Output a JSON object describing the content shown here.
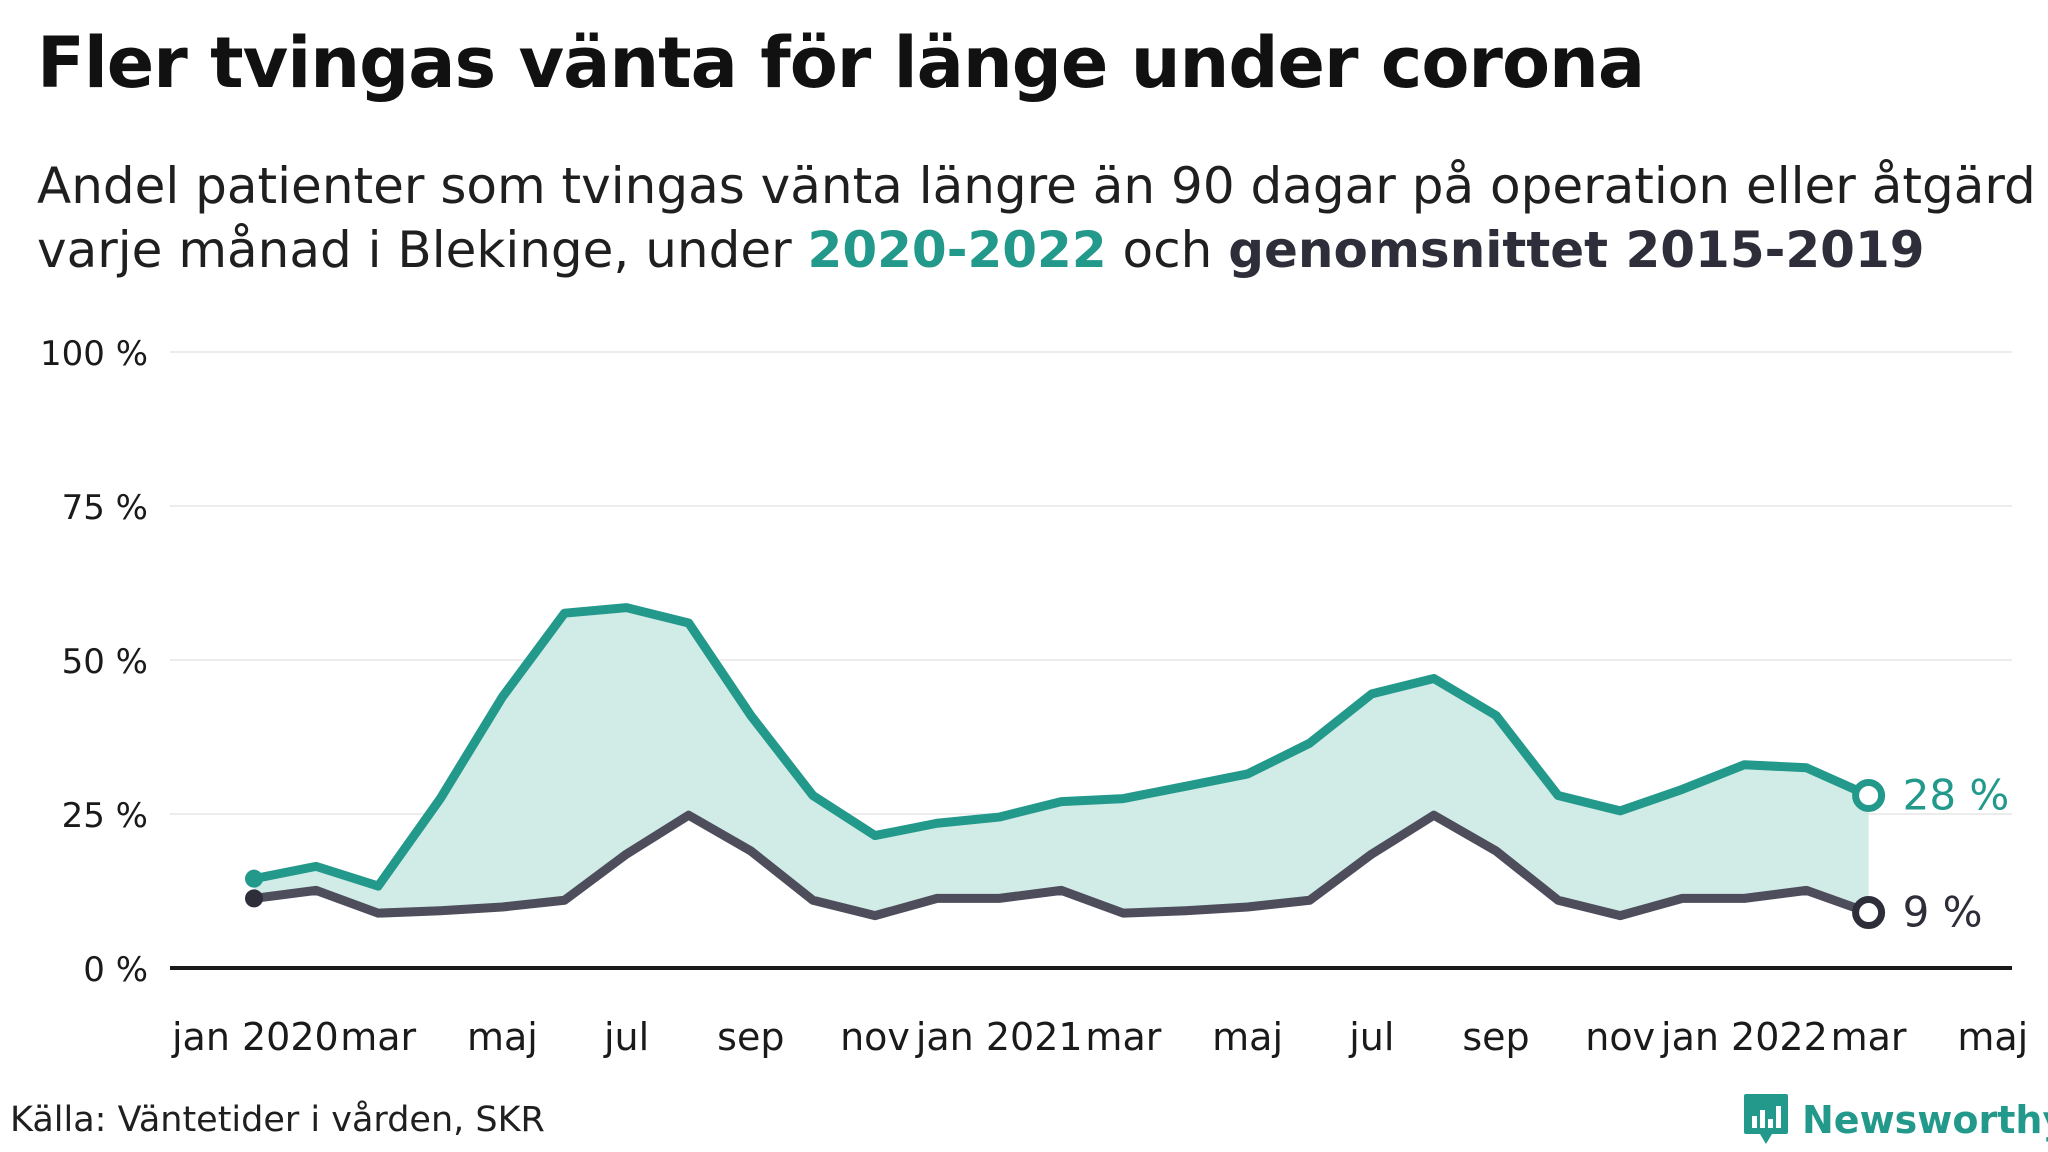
{
  "title": "Fler tvingas vänta för länge under corona",
  "subtitle": {
    "line1": "Andel patienter som tvingas vänta längre än 90 dagar på operation eller åtgärd",
    "line2_prefix": "varje månad i Blekinge, under ",
    "highlight_a": "2020-2022",
    "middle": " och ",
    "highlight_b": "genomsnittet 2015-2019"
  },
  "source": "Källa: Väntetider i vården, SKR",
  "brand": {
    "name": "Newsworthy",
    "icon": "newsworthy-logo-icon"
  },
  "colors": {
    "current": "#22998b",
    "average": "#4d4d5c",
    "fill": "#d1ebe7",
    "grid": "#e6e6e6",
    "axis": "#1a1a1a"
  },
  "chart_data": {
    "type": "area",
    "x_tick_labels": [
      "jan 2020",
      "mar",
      "maj",
      "jul",
      "sep",
      "nov",
      "jan 2021",
      "mar",
      "maj",
      "jul",
      "sep",
      "nov",
      "jan 2022",
      "mar",
      "maj"
    ],
    "x": [
      "2020-01",
      "2020-02",
      "2020-03",
      "2020-04",
      "2020-05",
      "2020-06",
      "2020-07",
      "2020-08",
      "2020-09",
      "2020-10",
      "2020-11",
      "2020-12",
      "2021-01",
      "2021-02",
      "2021-03",
      "2021-04",
      "2021-05",
      "2021-06",
      "2021-07",
      "2021-08",
      "2021-09",
      "2021-10",
      "2021-11",
      "2021-12",
      "2022-01",
      "2022-02",
      "2022-03"
    ],
    "xlim": [
      "2020-01",
      "2022-05"
    ],
    "y_ticks": [
      0,
      25,
      50,
      75,
      100
    ],
    "y_tick_labels": [
      "0 %",
      "25 %",
      "50 %",
      "75 %",
      "100 %"
    ],
    "ylim": [
      0,
      100
    ],
    "grid": true,
    "series": [
      {
        "name": "2020-2022",
        "values": [
          14.5,
          16.5,
          13.3,
          27.5,
          44.0,
          57.6,
          58.5,
          56.0,
          41.0,
          28.0,
          21.5,
          23.5,
          24.5,
          27.0,
          27.5,
          29.5,
          31.5,
          36.5,
          44.5,
          47.0,
          41.0,
          28.0,
          25.5,
          29.0,
          33.0,
          32.5,
          28.0
        ],
        "end_label": "28 %"
      },
      {
        "name": "genomsnittet 2015-2019",
        "values": [
          11.3,
          12.6,
          8.9,
          9.3,
          9.9,
          11.0,
          18.5,
          24.8,
          19.0,
          11.0,
          8.5,
          11.3,
          11.3,
          12.6,
          8.9,
          9.3,
          9.9,
          11.0,
          18.5,
          24.8,
          19.0,
          11.0,
          8.5,
          11.3,
          11.3,
          12.6,
          9.0
        ],
        "end_label": "9 %"
      }
    ]
  }
}
